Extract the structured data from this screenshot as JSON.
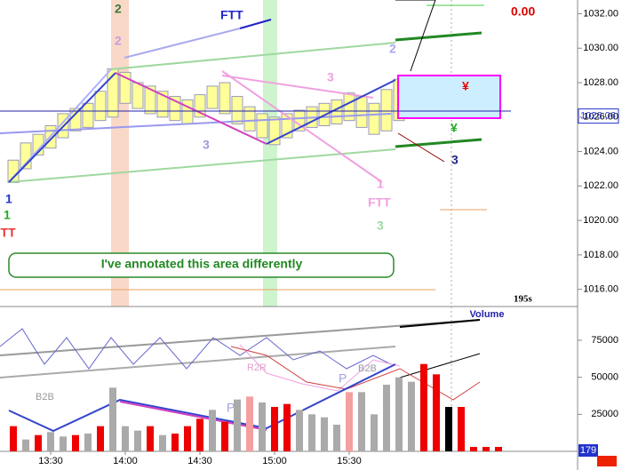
{
  "chart_data": [
    {
      "type": "range",
      "high": [
        1023.5,
        1024.5,
        1025,
        1025.5,
        1026.2,
        1026.5,
        1026.8,
        1027.5,
        1028.8,
        1028.6,
        1028,
        1027.8,
        1027.5,
        1027.2,
        1027,
        1027.3,
        1027.8,
        1028,
        1027.2,
        1026.6,
        1026.2,
        1026,
        1026.2,
        1026.4,
        1026.6,
        1026.8,
        1027,
        1027.4,
        1027.2,
        1026.8,
        1027.6,
        1028.2,
        1028
      ],
      "low": [
        1022.2,
        1023,
        1023.8,
        1024.2,
        1024.8,
        1025.2,
        1025.4,
        1025.8,
        1026,
        1026.8,
        1026.5,
        1026.2,
        1026,
        1025.8,
        1025.6,
        1026,
        1026.5,
        1026.2,
        1025.6,
        1025.2,
        1024.8,
        1024.4,
        1024.8,
        1025.2,
        1025.4,
        1025.5,
        1025.6,
        1025.8,
        1025.4,
        1025,
        1025.2,
        1025.8,
        1026
      ],
      "color": "#ffff99",
      "last_price": 1026.06,
      "ylim": [
        1015,
        1032.8
      ],
      "yticks": [
        {
          "value": 1016,
          "label": "1016.00"
        },
        {
          "value": 1018,
          "label": "1018.00"
        },
        {
          "value": 1020,
          "label": "1020.00"
        },
        {
          "value": 1022,
          "label": "1022.00"
        },
        {
          "value": 1024,
          "label": "1024.00"
        },
        {
          "value": 1026,
          "label": "1026.00"
        },
        {
          "value": 1028,
          "label": "1028.00"
        },
        {
          "value": 1030,
          "label": "1030.00"
        },
        {
          "value": 1032,
          "label": "1032.00"
        }
      ]
    },
    {
      "type": "bar",
      "title": "Volume",
      "categories": [
        null,
        null,
        null,
        "13:30",
        null,
        null,
        null,
        null,
        null,
        "14:00",
        null,
        null,
        null,
        null,
        null,
        "14:30",
        null,
        null,
        null,
        null,
        null,
        "15:00",
        null,
        null,
        null,
        null,
        null,
        "15:30",
        null,
        null,
        null,
        null,
        null,
        null,
        null,
        null,
        null,
        null,
        null,
        null
      ],
      "values": [
        17000,
        8000,
        11000,
        13000,
        10000,
        11000,
        12000,
        17000,
        43000,
        17000,
        14000,
        17000,
        11000,
        12000,
        17000,
        22000,
        28000,
        20000,
        35000,
        37000,
        33000,
        30000,
        32000,
        28000,
        25000,
        23000,
        18000,
        40000,
        40000,
        25000,
        45000,
        50000,
        47000,
        59000,
        52000,
        30000,
        30000,
        3000,
        3000,
        3000
      ],
      "colors": [
        "#ee0000",
        "#aaaaaa",
        "#ee0000",
        "#aaaaaa",
        "#aaaaaa",
        "#ee0000",
        "#aaaaaa",
        "#ee0000",
        "#aaaaaa",
        "#aaaaaa",
        "#aaaaaa",
        "#ee0000",
        "#aaaaaa",
        "#ee0000",
        "#ee0000",
        "#ee0000",
        "#aaaaaa",
        "#ee0000",
        "#aaaaaa",
        "#f4a0a0",
        "#aaaaaa",
        "#ee0000",
        "#ee0000",
        "#aaaaaa",
        "#aaaaaa",
        "#aaaaaa",
        "#aaaaaa",
        "#f4a0a0",
        "#aaaaaa",
        "#aaaaaa",
        "#aaaaaa",
        "#aaaaaa",
        "#aaaaaa",
        "#ee0000",
        "#ee0000",
        "#000000",
        "#ee0000",
        "#ee0000",
        "#ee0000",
        "#ee0000"
      ],
      "last_value": 179,
      "ylim": [
        0,
        96000
      ],
      "yticks": [
        25000,
        50000,
        75000
      ]
    }
  ],
  "annotations": [
    "FTT",
    "2",
    "2",
    "0.00",
    "2",
    "3",
    "3",
    "1",
    "1",
    "FTT",
    "3",
    "1",
    "FTT",
    "3",
    "I've annotated this area differently",
    "195s",
    "B2B",
    "R2R",
    "P",
    "P",
    "B2B",
    "¥",
    "¥"
  ]
}
